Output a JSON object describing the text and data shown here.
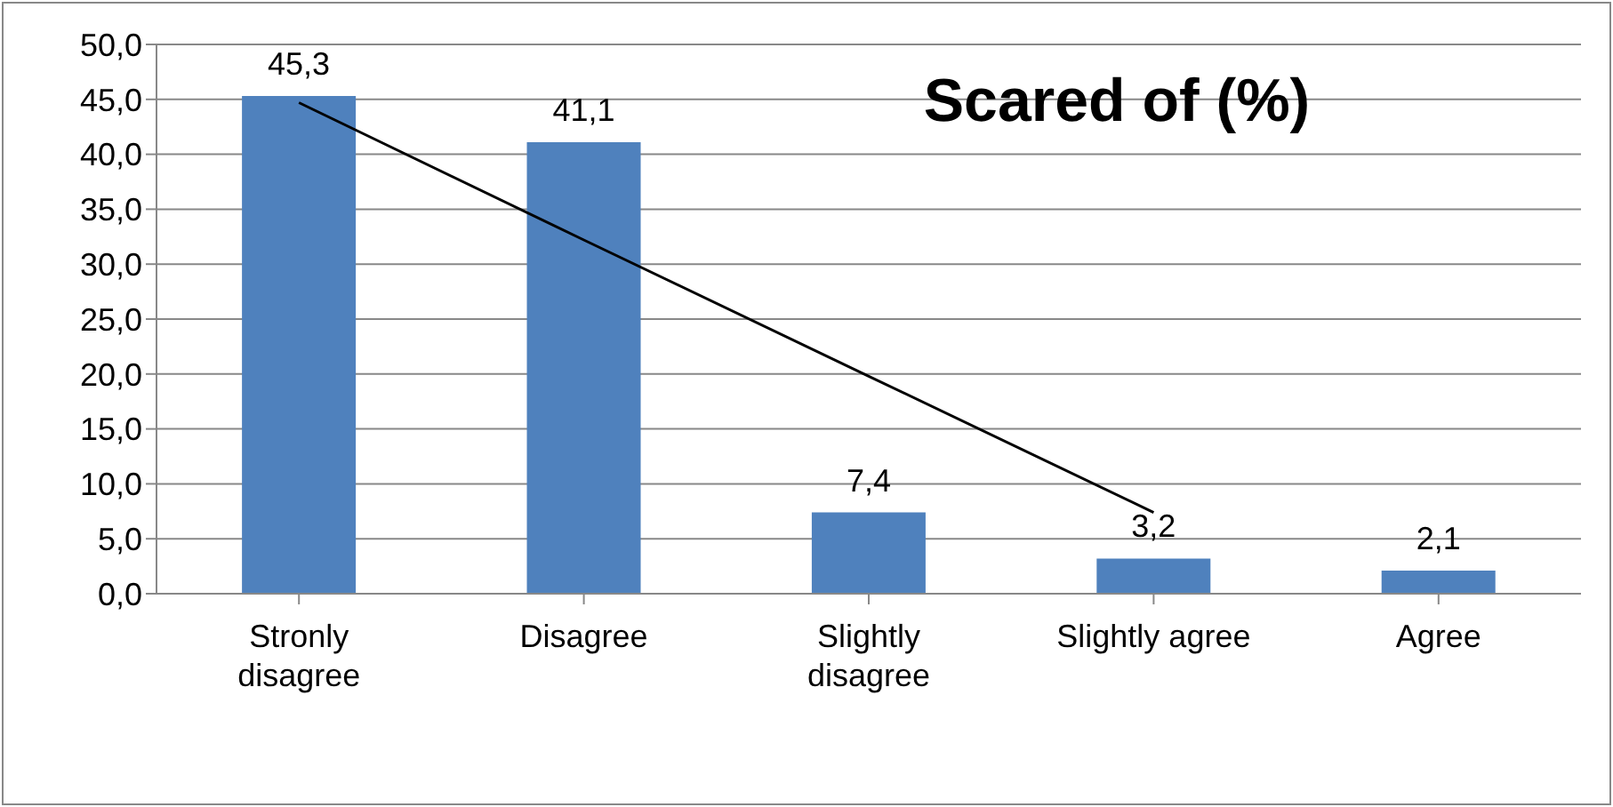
{
  "chart_data": {
    "type": "bar",
    "title": "Scared of (%)",
    "categories": [
      "Stronly disagree",
      "Disagree",
      "Slightly disagree",
      "Slightly agree",
      "Agree"
    ],
    "series": [
      {
        "color": "#4f81bd",
        "values": [
          45.3,
          41.1,
          7.4,
          3.2,
          2.1
        ],
        "value_labels": [
          "45,3",
          "41,1",
          "7,4",
          "3,2",
          "2,1"
        ]
      },
      {
        "type": "line",
        "color": "#000000",
        "values": [
          44.7,
          32.2,
          19.8,
          7.4,
          null
        ]
      }
    ],
    "ylim": [
      0,
      50
    ],
    "yticks": [
      {
        "value": 0,
        "label": "0,0"
      },
      {
        "value": 5,
        "label": "5,0"
      },
      {
        "value": 10,
        "label": "10,0"
      },
      {
        "value": 15,
        "label": "15,0"
      },
      {
        "value": 20,
        "label": "20,0"
      },
      {
        "value": 25,
        "label": "25,0"
      },
      {
        "value": 30,
        "label": "30,0"
      },
      {
        "value": 35,
        "label": "35,0"
      },
      {
        "value": 40,
        "label": "40,0"
      },
      {
        "value": 45,
        "label": "45,0"
      },
      {
        "value": 50,
        "label": "50,0"
      }
    ],
    "grid": "y",
    "legend": false
  }
}
